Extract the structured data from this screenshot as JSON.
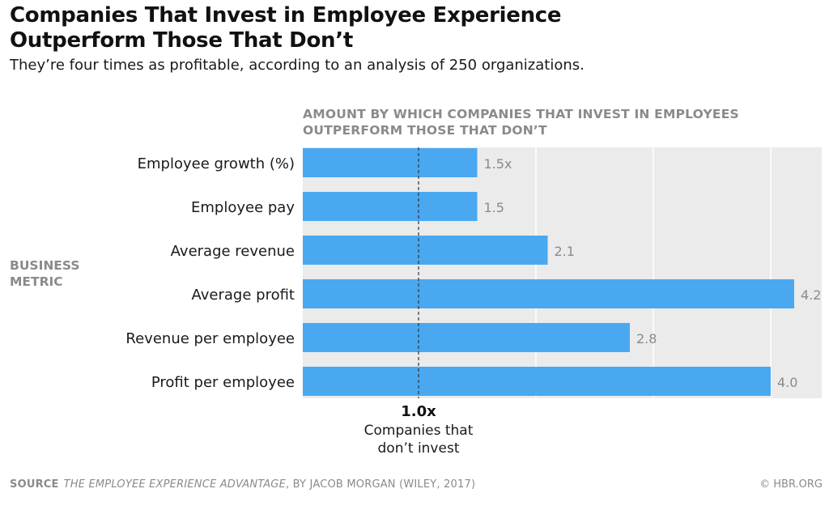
{
  "title": "Companies That Invest in Employee Experience Outperform Those That Don’t",
  "subtitle": "They’re four times as profitable, according to an analysis of 250 organizations.",
  "header": "AMOUNT BY WHICH COMPANIES THAT INVEST IN EMPLOYEES OUTPERFORM THOSE THAT DON’T",
  "y_axis_label": "BUSINESS METRIC",
  "source": {
    "label": "SOURCE",
    "book": "THE EMPLOYEE EXPERIENCE ADVANTAGE",
    "rest": ", BY JACOB MORGAN (WILEY, 2017)"
  },
  "copyright": "© HBR.ORG",
  "colors": {
    "bar": "#4aa8f0",
    "panel": "#ebebeb",
    "gridline": "#ffffff",
    "value_text": "#8a8a8a",
    "reference_line": "#333333"
  },
  "chart_data": {
    "type": "bar",
    "orientation": "horizontal",
    "categories": [
      "Employee growth (%)",
      "Employee pay",
      "Average revenue",
      "Average profit",
      "Revenue per employee",
      "Profit per employee"
    ],
    "values": [
      1.5,
      1.5,
      2.1,
      4.2,
      2.8,
      4.0
    ],
    "value_labels": [
      "1.5x",
      "1.5",
      "2.1",
      "4.2",
      "2.8",
      "4.0"
    ],
    "xlim": [
      0,
      4.5
    ],
    "grid": true,
    "reference": {
      "value": 1.0,
      "label": "1.0x",
      "caption": [
        "Companies that",
        "don’t invest"
      ]
    }
  }
}
